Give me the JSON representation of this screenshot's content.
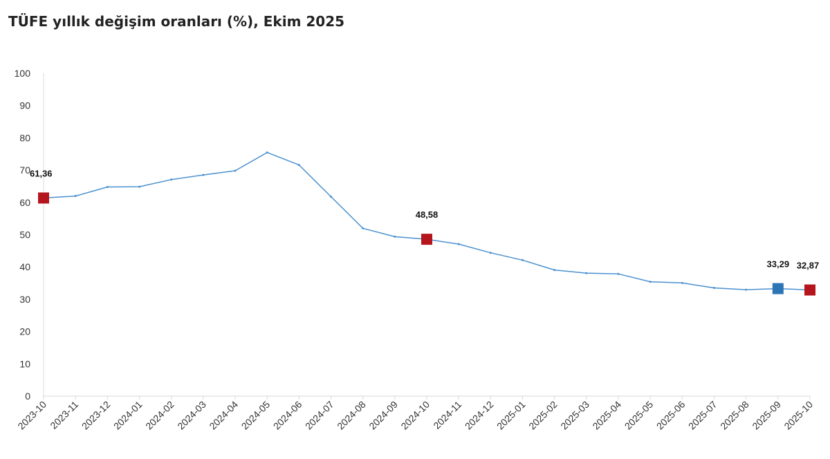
{
  "title": "TÜFE yıllık değişim oranları (%), Ekim 2025",
  "chart_data": {
    "type": "line",
    "title": "TÜFE yıllık değişim oranları (%), Ekim 2025",
    "xlabel": "",
    "ylabel": "",
    "ylim": [
      0,
      100
    ],
    "yticks": [
      0,
      10,
      20,
      30,
      40,
      50,
      60,
      70,
      80,
      90,
      100
    ],
    "grid": false,
    "categories": [
      "2023-10",
      "2023-11",
      "2023-12",
      "2024-01",
      "2024-02",
      "2024-03",
      "2024-04",
      "2024-05",
      "2024-06",
      "2024-07",
      "2024-08",
      "2024-09",
      "2024-10",
      "2024-11",
      "2024-12",
      "2025-01",
      "2025-02",
      "2025-03",
      "2025-04",
      "2025-05",
      "2025-06",
      "2025-07",
      "2025-08",
      "2025-09",
      "2025-10"
    ],
    "series": [
      {
        "color": "#4A90CF",
        "values": [
          61.36,
          61.98,
          64.77,
          64.86,
          67.07,
          68.5,
          69.8,
          75.45,
          71.6,
          61.78,
          51.97,
          49.38,
          48.58,
          47.09,
          44.38,
          42.12,
          39.05,
          38.1,
          37.86,
          35.41,
          35.05,
          33.52,
          32.95,
          33.29,
          32.87
        ]
      }
    ],
    "highlights": [
      {
        "index": 0,
        "label": "61,36",
        "color": "#B5161E"
      },
      {
        "index": 12,
        "label": "48,58",
        "color": "#B5161E"
      },
      {
        "index": 23,
        "label": "33,29",
        "color": "#2E75B6"
      },
      {
        "index": 24,
        "label": "32,87",
        "color": "#B5161E"
      }
    ],
    "axis_color": "#D9D9D9"
  }
}
